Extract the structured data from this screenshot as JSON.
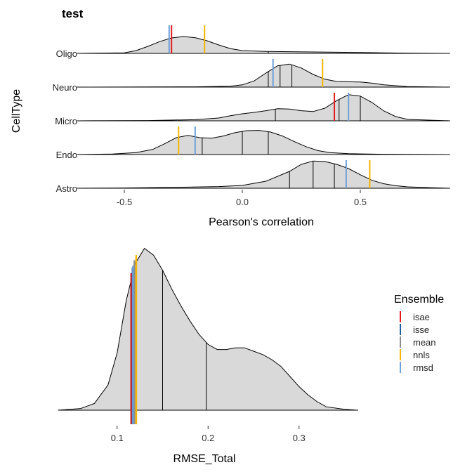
{
  "chart_data": [
    {
      "type": "ridgeline",
      "title": "test",
      "xlabel": "Pearson's correlation",
      "ylabel": "CellType",
      "xlim": [
        -0.7,
        0.88
      ],
      "xticks": [
        -0.5,
        0.0,
        0.5
      ],
      "xtick_labels": [
        "-0.5",
        "0.0",
        "0.5"
      ],
      "grid": false,
      "categories": [
        "Astro",
        "Endo",
        "Micro",
        "Neuro",
        "Oligo"
      ],
      "ridges": [
        {
          "name": "Astro",
          "density": [
            [
              -0.7,
              0.0
            ],
            [
              -0.5,
              0.01
            ],
            [
              -0.3,
              0.03
            ],
            [
              -0.1,
              0.06
            ],
            [
              0.0,
              0.1
            ],
            [
              0.1,
              0.25
            ],
            [
              0.2,
              0.6
            ],
            [
              0.25,
              0.85
            ],
            [
              0.3,
              0.97
            ],
            [
              0.35,
              0.95
            ],
            [
              0.4,
              0.85
            ],
            [
              0.45,
              0.7
            ],
            [
              0.5,
              0.48
            ],
            [
              0.55,
              0.28
            ],
            [
              0.6,
              0.16
            ],
            [
              0.65,
              0.09
            ],
            [
              0.7,
              0.05
            ],
            [
              0.8,
              0.02
            ],
            [
              0.88,
              0.0
            ]
          ],
          "quantiles": [
            0.2,
            0.3,
            0.39
          ]
        },
        {
          "name": "Endo",
          "density": [
            [
              -0.7,
              0.0
            ],
            [
              -0.55,
              0.02
            ],
            [
              -0.45,
              0.07
            ],
            [
              -0.38,
              0.18
            ],
            [
              -0.33,
              0.38
            ],
            [
              -0.28,
              0.6
            ],
            [
              -0.23,
              0.68
            ],
            [
              -0.18,
              0.6
            ],
            [
              -0.13,
              0.58
            ],
            [
              -0.08,
              0.66
            ],
            [
              -0.03,
              0.78
            ],
            [
              0.02,
              0.85
            ],
            [
              0.07,
              0.86
            ],
            [
              0.12,
              0.8
            ],
            [
              0.17,
              0.66
            ],
            [
              0.22,
              0.46
            ],
            [
              0.27,
              0.28
            ],
            [
              0.32,
              0.14
            ],
            [
              0.37,
              0.07
            ],
            [
              0.45,
              0.03
            ],
            [
              0.6,
              0.01
            ],
            [
              0.88,
              0.0
            ]
          ],
          "quantiles": [
            -0.17,
            0.0,
            0.11
          ]
        },
        {
          "name": "Micro",
          "density": [
            [
              -0.7,
              0.0
            ],
            [
              -0.4,
              0.01
            ],
            [
              -0.2,
              0.04
            ],
            [
              -0.1,
              0.1
            ],
            [
              -0.05,
              0.18
            ],
            [
              0.0,
              0.25
            ],
            [
              0.05,
              0.3
            ],
            [
              0.1,
              0.36
            ],
            [
              0.15,
              0.43
            ],
            [
              0.2,
              0.42
            ],
            [
              0.25,
              0.36
            ],
            [
              0.3,
              0.33
            ],
            [
              0.35,
              0.45
            ],
            [
              0.4,
              0.72
            ],
            [
              0.45,
              0.93
            ],
            [
              0.5,
              0.88
            ],
            [
              0.55,
              0.65
            ],
            [
              0.6,
              0.35
            ],
            [
              0.65,
              0.15
            ],
            [
              0.7,
              0.05
            ],
            [
              0.88,
              0.0
            ]
          ],
          "quantiles": [
            0.14,
            0.41,
            0.5
          ]
        },
        {
          "name": "Neuro",
          "density": [
            [
              -0.7,
              0.0
            ],
            [
              -0.2,
              0.01
            ],
            [
              -0.05,
              0.03
            ],
            [
              0.0,
              0.08
            ],
            [
              0.05,
              0.22
            ],
            [
              0.1,
              0.5
            ],
            [
              0.15,
              0.76
            ],
            [
              0.2,
              0.82
            ],
            [
              0.25,
              0.68
            ],
            [
              0.3,
              0.45
            ],
            [
              0.35,
              0.28
            ],
            [
              0.4,
              0.2
            ],
            [
              0.45,
              0.19
            ],
            [
              0.5,
              0.18
            ],
            [
              0.55,
              0.14
            ],
            [
              0.6,
              0.08
            ],
            [
              0.7,
              0.02
            ],
            [
              0.88,
              0.0
            ]
          ],
          "quantiles": [
            0.11,
            0.16,
            0.21
          ]
        },
        {
          "name": "Oligo",
          "density": [
            [
              -0.7,
              0.0
            ],
            [
              -0.5,
              0.02
            ],
            [
              -0.45,
              0.1
            ],
            [
              -0.4,
              0.25
            ],
            [
              -0.35,
              0.42
            ],
            [
              -0.3,
              0.55
            ],
            [
              -0.25,
              0.6
            ],
            [
              -0.2,
              0.56
            ],
            [
              -0.15,
              0.45
            ],
            [
              -0.1,
              0.3
            ],
            [
              -0.05,
              0.17
            ],
            [
              0.0,
              0.1
            ],
            [
              0.1,
              0.07
            ],
            [
              0.2,
              0.06
            ],
            [
              0.3,
              0.05
            ],
            [
              0.4,
              0.04
            ],
            [
              0.5,
              0.03
            ],
            [
              0.6,
              0.02
            ],
            [
              0.7,
              0.01
            ],
            [
              0.88,
              0.0
            ]
          ],
          "quantiles": [
            -0.3,
            0.11
          ]
        }
      ],
      "ensemble_lines": {
        "Astro": {
          "nnls": 0.54,
          "rmsd": 0.44
        },
        "Endo": {
          "nnls": -0.27,
          "rmsd": -0.2
        },
        "Micro": {
          "isae": 0.39,
          "rmsd": 0.45
        },
        "Neuro": {
          "nnls": 0.34,
          "rmsd": 0.13
        },
        "Oligo": {
          "rmsd": -0.31,
          "isae": -0.3,
          "nnls": -0.16
        }
      }
    },
    {
      "type": "density",
      "xlabel": "RMSE_Total",
      "xlim": [
        0.03,
        0.37
      ],
      "xticks": [
        0.1,
        0.2,
        0.3
      ],
      "xtick_labels": [
        "0.1",
        "0.2",
        "0.3"
      ],
      "grid": false,
      "density": [
        [
          0.035,
          0.0
        ],
        [
          0.06,
          0.01
        ],
        [
          0.075,
          0.04
        ],
        [
          0.09,
          0.15
        ],
        [
          0.1,
          0.34
        ],
        [
          0.11,
          0.65
        ],
        [
          0.12,
          0.87
        ],
        [
          0.13,
          0.96
        ],
        [
          0.14,
          0.92
        ],
        [
          0.15,
          0.83
        ],
        [
          0.16,
          0.72
        ],
        [
          0.17,
          0.62
        ],
        [
          0.18,
          0.53
        ],
        [
          0.19,
          0.45
        ],
        [
          0.2,
          0.39
        ],
        [
          0.21,
          0.36
        ],
        [
          0.22,
          0.36
        ],
        [
          0.23,
          0.37
        ],
        [
          0.24,
          0.37
        ],
        [
          0.25,
          0.35
        ],
        [
          0.26,
          0.33
        ],
        [
          0.27,
          0.3
        ],
        [
          0.28,
          0.26
        ],
        [
          0.29,
          0.2
        ],
        [
          0.3,
          0.14
        ],
        [
          0.31,
          0.09
        ],
        [
          0.32,
          0.05
        ],
        [
          0.33,
          0.02
        ],
        [
          0.35,
          0.005
        ],
        [
          0.365,
          0.0
        ]
      ],
      "quantiles": [
        0.115,
        0.15,
        0.198
      ],
      "ensemble_lines": {
        "isae": 0.1155,
        "isse": 0.117,
        "mean": 0.119,
        "nnls": 0.121,
        "rmsd": 0.1175
      }
    }
  ],
  "legend": {
    "title": "Ensemble",
    "placement": "right",
    "items": [
      {
        "label": "isae",
        "color": "#e31a1c"
      },
      {
        "label": "isse",
        "color": "#1f5fa6"
      },
      {
        "label": "mean",
        "color": "#8c8c8c"
      },
      {
        "label": "nnls",
        "color": "#f4b400"
      },
      {
        "label": "rmsd",
        "color": "#6fa0d8"
      }
    ]
  },
  "colors": {
    "isae": "#e31a1c",
    "isse": "#1f5fa6",
    "mean": "#8c8c8c",
    "nnls": "#f4b400",
    "rmsd": "#6fa0d8",
    "fill": "#d9d9d9"
  }
}
